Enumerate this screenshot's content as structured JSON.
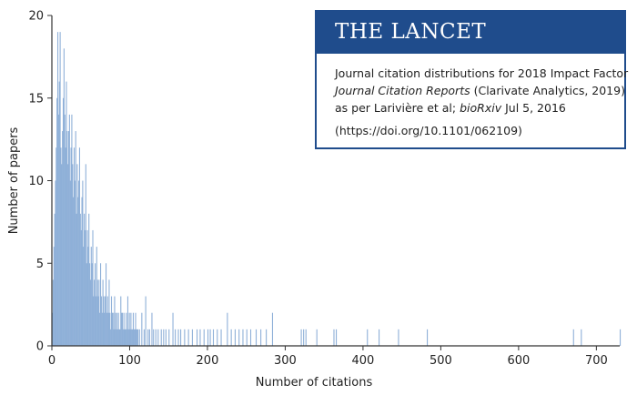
{
  "chart_data": {
    "type": "bar",
    "title": "",
    "xlabel": "Number of citations",
    "ylabel": "Number of papers",
    "xlim": [
      0,
      730
    ],
    "ylim": [
      0,
      20
    ],
    "xticks": [
      0,
      100,
      200,
      300,
      400,
      500,
      600,
      700
    ],
    "yticks": [
      0,
      5,
      10,
      15,
      20
    ],
    "bar_color": "#8fb0d8",
    "axis_color": "#333333",
    "series": [
      {
        "name": "Number of papers",
        "x": [
          0,
          1,
          2,
          3,
          4,
          5,
          6,
          7,
          8,
          9,
          10,
          11,
          12,
          13,
          14,
          15,
          16,
          17,
          18,
          19,
          20,
          21,
          22,
          23,
          24,
          25,
          26,
          27,
          28,
          29,
          30,
          31,
          32,
          33,
          34,
          35,
          36,
          37,
          38,
          39,
          40,
          41,
          42,
          43,
          44,
          45,
          46,
          47,
          48,
          49,
          50,
          51,
          52,
          53,
          54,
          55,
          56,
          57,
          58,
          59,
          60,
          61,
          62,
          63,
          64,
          65,
          66,
          67,
          68,
          69,
          70,
          71,
          72,
          73,
          74,
          75,
          76,
          77,
          78,
          79,
          80,
          81,
          82,
          83,
          84,
          85,
          86,
          87,
          88,
          89,
          90,
          91,
          92,
          93,
          94,
          95,
          96,
          97,
          98,
          99,
          100,
          101,
          102,
          103,
          104,
          105,
          106,
          107,
          108,
          109,
          110,
          112,
          115,
          118,
          120,
          123,
          125,
          128,
          130,
          133,
          136,
          140,
          143,
          146,
          150,
          155,
          158,
          162,
          165,
          170,
          175,
          180,
          186,
          190,
          195,
          200,
          203,
          207,
          212,
          217,
          225,
          230,
          235,
          240,
          245,
          250,
          255,
          262,
          268,
          275,
          283,
          320,
          323,
          326,
          340,
          362,
          365,
          405,
          420,
          445,
          482,
          670,
          680,
          730
        ],
        "values": [
          2,
          4,
          6,
          8,
          10,
          12,
          15,
          19,
          14,
          16,
          19,
          12,
          11,
          13,
          15,
          18,
          14,
          12,
          16,
          13,
          11,
          13,
          14,
          10,
          12,
          14,
          11,
          9,
          12,
          10,
          13,
          8,
          11,
          9,
          10,
          12,
          8,
          7,
          9,
          10,
          6,
          8,
          7,
          11,
          5,
          7,
          6,
          8,
          5,
          4,
          6,
          5,
          7,
          3,
          4,
          5,
          3,
          6,
          4,
          3,
          4,
          2,
          5,
          3,
          2,
          4,
          3,
          2,
          3,
          5,
          2,
          3,
          2,
          4,
          2,
          1,
          3,
          2,
          2,
          1,
          3,
          2,
          1,
          2,
          1,
          2,
          1,
          1,
          3,
          2,
          2,
          1,
          2,
          1,
          1,
          2,
          1,
          3,
          1,
          2,
          1,
          2,
          1,
          1,
          2,
          1,
          1,
          2,
          1,
          1,
          1,
          1,
          2,
          1,
          3,
          1,
          1,
          2,
          1,
          1,
          1,
          1,
          1,
          1,
          1,
          2,
          1,
          1,
          1,
          1,
          1,
          1,
          1,
          1,
          1,
          1,
          1,
          1,
          1,
          1,
          2,
          1,
          1,
          1,
          1,
          1,
          1,
          1,
          1,
          1,
          2,
          1,
          1,
          1,
          1,
          1,
          1,
          1,
          1,
          1,
          1,
          1,
          1,
          1
        ]
      }
    ]
  },
  "infobox": {
    "header": "THE LANCET",
    "line1": "Journal citation distributions for 2018 Impact Factor",
    "line2_italic": "Journal Citation Reports",
    "line2_rest": " (Clarivate Analytics, 2019)",
    "line3_pre": "as per Larivière et al; ",
    "line3_italic": "bioRxiv",
    "line3_post": " Jul 5, 2016",
    "doi": "(https://doi.org/10.1101/062109)"
  },
  "colors": {
    "brand_blue": "#1f4c8c"
  }
}
